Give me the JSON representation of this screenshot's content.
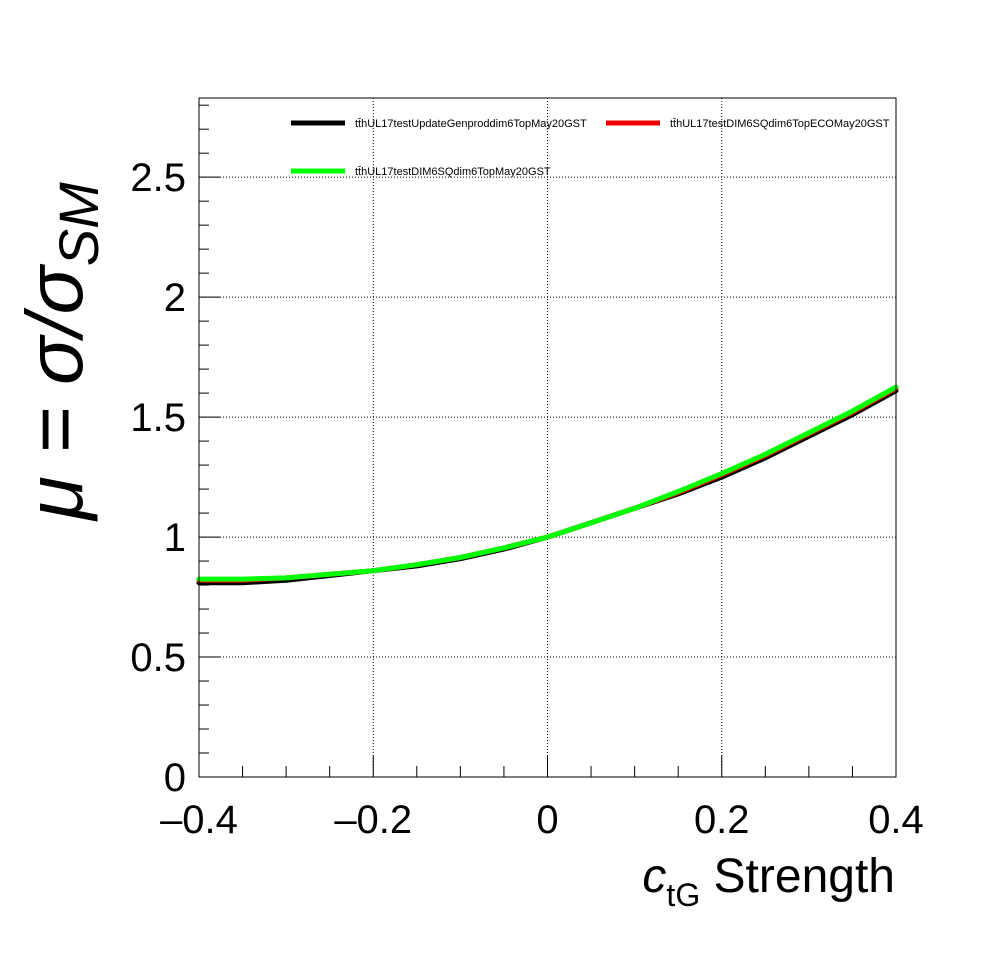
{
  "chart_data": {
    "type": "line",
    "xlabel_symbol": "c",
    "xlabel_subscript": "tG",
    "xlabel_suffix": " Strength",
    "ylabel_lhs": "μ = σ/σ",
    "ylabel_subscript": "SM",
    "xlim": [
      -0.4,
      0.4
    ],
    "ylim": [
      0,
      2.83
    ],
    "x_ticks": [
      -0.4,
      -0.2,
      0,
      0.2,
      0.4
    ],
    "x_tick_labels": [
      "–0.4",
      "–0.2",
      "0",
      "0.2",
      "0.4"
    ],
    "y_ticks": [
      0,
      0.5,
      1,
      1.5,
      2,
      2.5
    ],
    "y_tick_labels": [
      "0",
      "0.5",
      "1",
      "1.5",
      "2",
      "2.5"
    ],
    "grid": true,
    "legend_position": "top",
    "x": [
      -0.4,
      -0.35,
      -0.3,
      -0.25,
      -0.2,
      -0.15,
      -0.1,
      -0.05,
      0,
      0.05,
      0.1,
      0.15,
      0.2,
      0.25,
      0.3,
      0.35,
      0.4
    ],
    "series": [
      {
        "name": "tt̄hUL17testUpdateGenproddim6TopMay20GST",
        "color": "#000000",
        "values": [
          0.81,
          0.81,
          0.82,
          0.84,
          0.86,
          0.88,
          0.91,
          0.95,
          1.0,
          1.06,
          1.12,
          1.18,
          1.25,
          1.33,
          1.42,
          1.51,
          1.61
        ]
      },
      {
        "name": "tt̄hUL17testDIM6SQdim6TopECOMay20GST",
        "color": "#ee0000",
        "values": [
          0.82,
          0.82,
          0.83,
          0.845,
          0.86,
          0.885,
          0.915,
          0.955,
          1.0,
          1.06,
          1.12,
          1.185,
          1.26,
          1.34,
          1.43,
          1.52,
          1.62
        ]
      },
      {
        "name": "tt̄hUL17testDIM6SQdim6TopMay20GST",
        "color": "#00ff00",
        "values": [
          0.825,
          0.825,
          0.83,
          0.845,
          0.86,
          0.885,
          0.915,
          0.955,
          1.0,
          1.06,
          1.12,
          1.19,
          1.265,
          1.345,
          1.435,
          1.525,
          1.625
        ]
      }
    ]
  }
}
